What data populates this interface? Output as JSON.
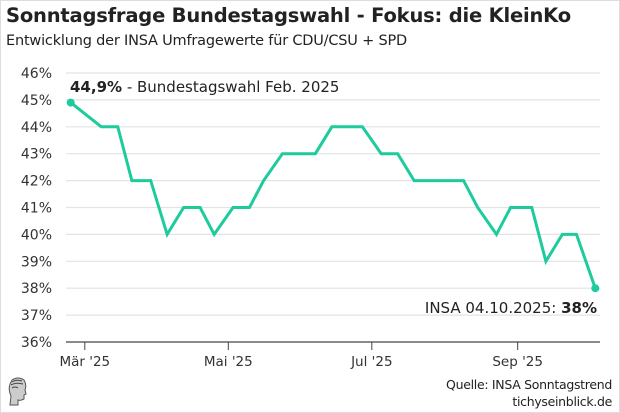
{
  "title": "Sonntagsfrage Bundestagswahl - Fokus: die KleinKo",
  "subtitle": "Entwicklung der INSA Umfragewerte für CDU/CSU + SPD",
  "chart_data": {
    "type": "line",
    "ylim": [
      36,
      46
    ],
    "yticks": [
      36,
      37,
      38,
      39,
      40,
      41,
      42,
      43,
      44,
      45,
      46
    ],
    "ytick_labels": [
      "36%",
      "37%",
      "38%",
      "39%",
      "40%",
      "41%",
      "42%",
      "43%",
      "44%",
      "45%",
      "46%"
    ],
    "xlim": [
      "2025-02-21",
      "2025-10-06"
    ],
    "xticks": [
      "2025-03-01",
      "2025-05-01",
      "2025-07-01",
      "2025-09-01"
    ],
    "xtick_labels": [
      "Mär '25",
      "Mai '25",
      "Jul '25",
      "Sep '25"
    ],
    "grid": "horizontal",
    "color": "#1dcb9c",
    "x": [
      "2025-02-23",
      "2025-03-08",
      "2025-03-15",
      "2025-03-21",
      "2025-03-29",
      "2025-04-05",
      "2025-04-12",
      "2025-04-19",
      "2025-04-25",
      "2025-05-03",
      "2025-05-10",
      "2025-05-16",
      "2025-05-24",
      "2025-06-07",
      "2025-06-14",
      "2025-06-27",
      "2025-07-05",
      "2025-07-12",
      "2025-07-19",
      "2025-08-09",
      "2025-08-15",
      "2025-08-23",
      "2025-08-29",
      "2025-09-07",
      "2025-09-13",
      "2025-09-20",
      "2025-09-26",
      "2025-10-04"
    ],
    "values": [
      44.9,
      44,
      44,
      42,
      42,
      40,
      41,
      41,
      40,
      41,
      41,
      42,
      43,
      43,
      44,
      44,
      43,
      43,
      42,
      42,
      41,
      40,
      41,
      41,
      39,
      40,
      40,
      38
    ],
    "annotations": [
      {
        "bold": "44,9%",
        "text": " - Bundestagswahl Feb. 2025"
      },
      {
        "text": "INSA 04.10.2025: ",
        "bold": "38%"
      }
    ]
  },
  "footer": {
    "source": "Quelle: INSA Sonntagstrend",
    "site": "tichyseinblick.de",
    "logo": "classical-head-logo"
  }
}
